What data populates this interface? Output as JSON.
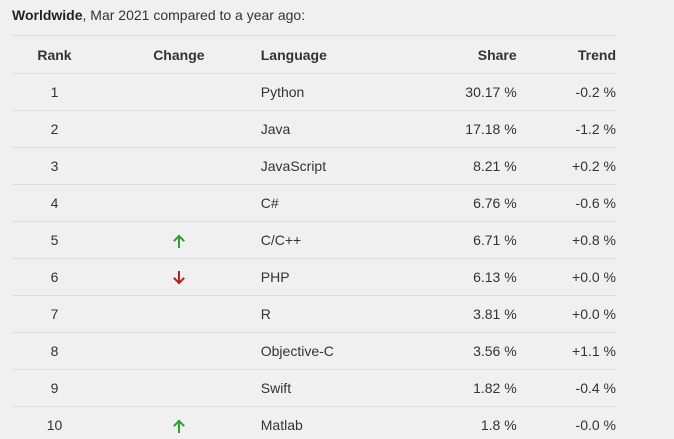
{
  "caption": {
    "bold": "Worldwide",
    "rest": ", Mar 2021 compared to a year ago:"
  },
  "headers": {
    "rank": "Rank",
    "change": "Change",
    "language": "Language",
    "share": "Share",
    "trend": "Trend"
  },
  "colors": {
    "up": "#2e9e2e",
    "down": "#b52020"
  },
  "rows": [
    {
      "rank": "1",
      "change": "",
      "language": "Python",
      "share": "30.17 %",
      "trend": "-0.2 %"
    },
    {
      "rank": "2",
      "change": "",
      "language": "Java",
      "share": "17.18 %",
      "trend": "-1.2 %"
    },
    {
      "rank": "3",
      "change": "",
      "language": "JavaScript",
      "share": "8.21 %",
      "trend": "+0.2 %"
    },
    {
      "rank": "4",
      "change": "",
      "language": "C#",
      "share": "6.76 %",
      "trend": "-0.6 %"
    },
    {
      "rank": "5",
      "change": "up",
      "language": "C/C++",
      "share": "6.71 %",
      "trend": "+0.8 %"
    },
    {
      "rank": "6",
      "change": "down",
      "language": "PHP",
      "share": "6.13 %",
      "trend": "+0.0 %"
    },
    {
      "rank": "7",
      "change": "",
      "language": "R",
      "share": "3.81 %",
      "trend": "+0.0 %"
    },
    {
      "rank": "8",
      "change": "",
      "language": "Objective-C",
      "share": "3.56 %",
      "trend": "+1.1 %"
    },
    {
      "rank": "9",
      "change": "",
      "language": "Swift",
      "share": "1.82 %",
      "trend": "-0.4 %"
    },
    {
      "rank": "10",
      "change": "up",
      "language": "Matlab",
      "share": "1.8 %",
      "trend": "-0.0 %"
    }
  ]
}
